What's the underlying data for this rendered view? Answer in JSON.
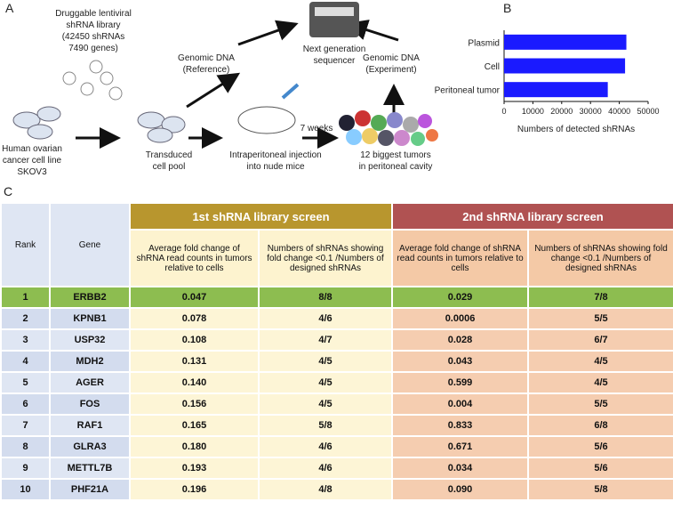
{
  "diagram": {
    "label": "A",
    "library": [
      "Druggable lentiviral",
      "shRNA library",
      "(42450 shRNAs",
      "7490 genes)"
    ],
    "cells": [
      "Human ovarian",
      "cancer cell line",
      "SKOV3"
    ],
    "pool": [
      "Transduced",
      "cell pool"
    ],
    "reference": [
      "Genomic DNA",
      "(Reference)"
    ],
    "sequencer": [
      "Next generation",
      "sequencer"
    ],
    "experiment": [
      "Genomic DNA",
      "(Experiment)"
    ],
    "injection": [
      "Intraperitoneal   injection",
      "into nude   mice"
    ],
    "weeks": "7 weeks",
    "tumors": [
      "12 biggest tumors",
      "in peritoneal cavity"
    ]
  },
  "chart_data": {
    "type": "hbar",
    "label": "B",
    "categories": [
      "Plasmid",
      "Cell",
      "Peritoneal tumor"
    ],
    "values": [
      42450,
      42000,
      36000
    ],
    "color": "#1a1aff",
    "xlim": [
      0,
      50000
    ],
    "xticks": [
      0,
      10000,
      20000,
      30000,
      40000,
      50000
    ],
    "xlabel": "Numbers of detected shRNAs"
  },
  "table": {
    "label": "C",
    "group_headers": [
      "1st shRNA library screen",
      "2nd shRNA library screen"
    ],
    "columns": [
      "Rank",
      "Gene",
      "Average fold change of shRNA read counts in tumors relative to cells",
      "Numbers of shRNAs showing fold change <0.1 /Numbers of designed shRNAs",
      "Average fold change of shRNA read counts in tumors relative to cells",
      "Numbers of shRNAs showing fold change <0.1 /Numbers of designed shRNAs"
    ],
    "rows": [
      [
        "1",
        "ERBB2",
        "0.047",
        "8/8",
        "0.029",
        "7/8"
      ],
      [
        "2",
        "KPNB1",
        "0.078",
        "4/6",
        "0.0006",
        "5/5"
      ],
      [
        "3",
        "USP32",
        "0.108",
        "4/7",
        "0.028",
        "6/7"
      ],
      [
        "4",
        "MDH2",
        "0.131",
        "4/5",
        "0.043",
        "4/5"
      ],
      [
        "5",
        "AGER",
        "0.140",
        "4/5",
        "0.599",
        "4/5"
      ],
      [
        "6",
        "FOS",
        "0.156",
        "4/5",
        "0.004",
        "5/5"
      ],
      [
        "7",
        "RAF1",
        "0.165",
        "5/8",
        "0.833",
        "6/8"
      ],
      [
        "8",
        "GLRA3",
        "0.180",
        "4/6",
        "0.671",
        "5/6"
      ],
      [
        "9",
        "METTL7B",
        "0.193",
        "4/6",
        "0.034",
        "5/6"
      ],
      [
        "10",
        "PHF21A",
        "0.196",
        "4/8",
        "0.090",
        "5/8"
      ]
    ]
  }
}
